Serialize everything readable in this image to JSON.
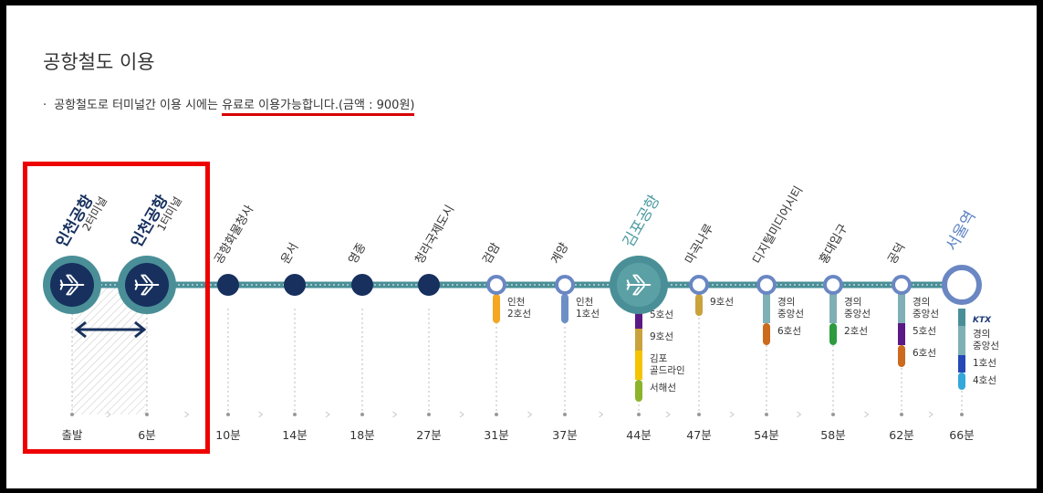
{
  "page_title": "공항철도 이용",
  "notice": {
    "bullet": "·",
    "prefix": "공항철도로 터미널간 이용 시에는 ",
    "highlight": "유료로 이용가능합니다.(금액 : 900원)"
  },
  "colors": {
    "line": "#4a8f97",
    "line_light": "#8ab8bd",
    "dark_station": "#17305e",
    "ring": "#6a87c3",
    "highlight_box": "#ee0000",
    "notice_underline": "#d80000"
  },
  "stations": [
    {
      "name": "인천공항",
      "sub": "2터미널",
      "type": "airport",
      "time": "출발",
      "name_color": "#17305e"
    },
    {
      "name": "인천공항",
      "sub": "1터미널",
      "type": "airport",
      "time": "6분",
      "name_color": "#17305e"
    },
    {
      "name": "공항화물청사",
      "sub": "",
      "type": "dark",
      "time": "10분",
      "name_color": "#333333"
    },
    {
      "name": "운서",
      "sub": "",
      "type": "dark",
      "time": "14분",
      "name_color": "#333333"
    },
    {
      "name": "영종",
      "sub": "",
      "type": "dark",
      "time": "18분",
      "name_color": "#333333"
    },
    {
      "name": "청라국제도시",
      "sub": "",
      "type": "dark",
      "time": "27분",
      "name_color": "#333333"
    },
    {
      "name": "검암",
      "sub": "",
      "type": "ring",
      "time": "31분",
      "name_color": "#333333",
      "transfers": [
        {
          "line": "인천\n2호선",
          "color": "#f5a623"
        }
      ]
    },
    {
      "name": "계양",
      "sub": "",
      "type": "ring",
      "time": "37분",
      "name_color": "#333333",
      "transfers": [
        {
          "line": "인천\n1호선",
          "color": "#6c8fc6"
        }
      ]
    },
    {
      "name": "김포공항",
      "sub": "",
      "type": "airport",
      "time": "44분",
      "name_color": "#4a9aa0",
      "transfers": [
        {
          "line": "5호선",
          "color": "#5a1a86"
        },
        {
          "line": "9호선",
          "color": "#c9a23c"
        },
        {
          "line": "김포\n골드라인",
          "color": "#f5c400"
        },
        {
          "line": "서해선",
          "color": "#8db32a"
        }
      ]
    },
    {
      "name": "마곡나루",
      "sub": "",
      "type": "ring",
      "time": "47분",
      "name_color": "#333333",
      "transfers": [
        {
          "line": "9호선",
          "color": "#c9a23c"
        }
      ]
    },
    {
      "name": "디지털미디어시티",
      "sub": "",
      "type": "ring",
      "time": "54분",
      "name_color": "#333333",
      "transfers": [
        {
          "line": "경의\n중앙선",
          "color": "#7fb0b5"
        },
        {
          "line": "6호선",
          "color": "#cc6a1d"
        }
      ]
    },
    {
      "name": "홍대입구",
      "sub": "",
      "type": "ring",
      "time": "58분",
      "name_color": "#333333",
      "transfers": [
        {
          "line": "경의\n중앙선",
          "color": "#7fb0b5"
        },
        {
          "line": "2호선",
          "color": "#2e9b3e"
        }
      ]
    },
    {
      "name": "공덕",
      "sub": "",
      "type": "ring",
      "time": "62분",
      "name_color": "#333333",
      "transfers": [
        {
          "line": "경의\n중앙선",
          "color": "#7fb0b5"
        },
        {
          "line": "5호선",
          "color": "#5a1a86"
        },
        {
          "line": "6호선",
          "color": "#cc6a1d"
        }
      ]
    },
    {
      "name": "서울역",
      "sub": "",
      "type": "bigring",
      "time": "66분",
      "name_color": "#5d82c4",
      "transfers": [
        {
          "line": "KTX",
          "color": "#4a8f97",
          "badge": true
        },
        {
          "line": "경의\n중앙선",
          "color": "#7fb0b5"
        },
        {
          "line": "1호선",
          "color": "#2648b6"
        },
        {
          "line": "4호선",
          "color": "#34a8d8"
        }
      ]
    }
  ]
}
